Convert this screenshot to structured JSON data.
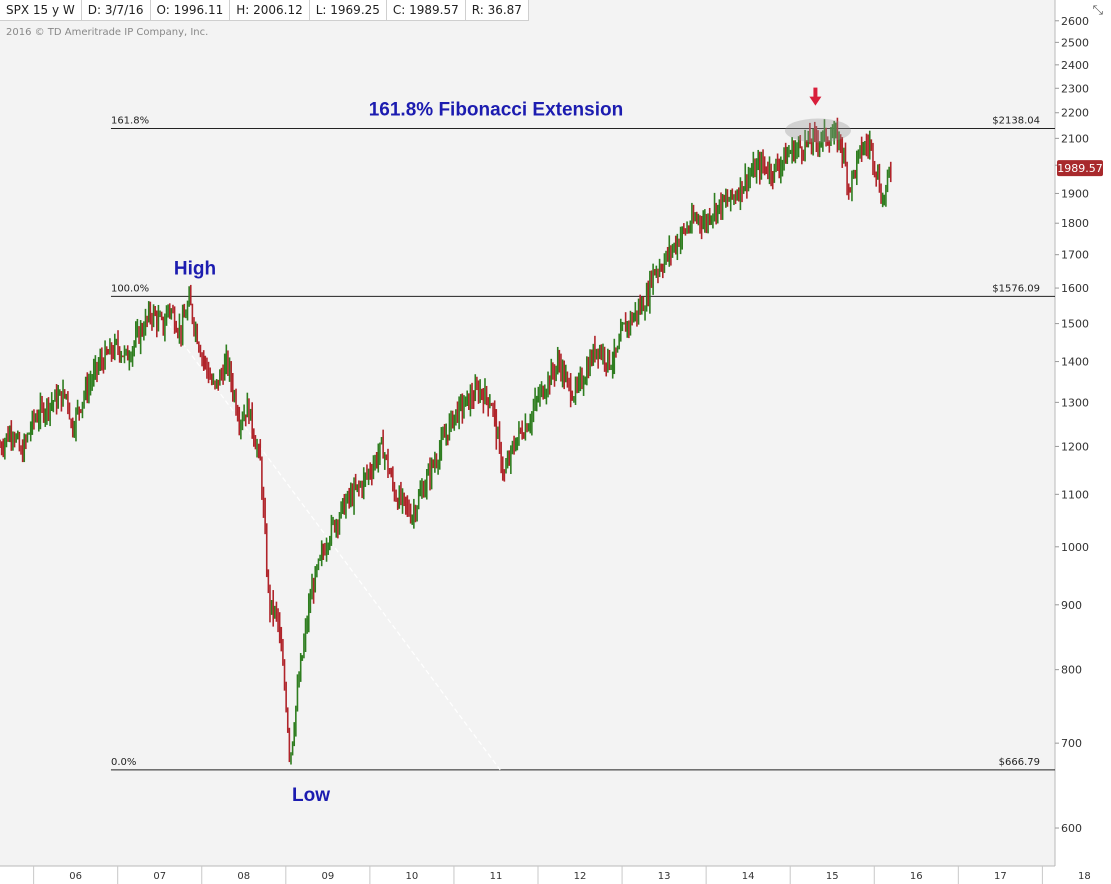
{
  "header": {
    "symbol": "SPX 15 y W",
    "date": "D: 3/7/16",
    "open": "O: 1996.11",
    "high": "H: 2006.12",
    "low": "L: 1969.25",
    "close": "C: 1989.57",
    "range": "R: 36.87"
  },
  "copyright": "2016 © TD Ameritrade IP Company, Inc.",
  "toolbar_icon": "drawing-tools-icon",
  "colors": {
    "up": "#2e7d1f",
    "down": "#b0242a",
    "price_tag": "#a8292c",
    "annotation_text": "#1c1cb0",
    "arrow": "#d81e3a",
    "plot_bg": "#f3f3f3"
  },
  "chart_data": {
    "type": "line",
    "title": "",
    "xlabel": "",
    "ylabel": "",
    "y_scale": "log",
    "ylim": [
      560,
      2700
    ],
    "xlim": [
      2005.6,
      2018.15
    ],
    "x_ticks": [
      "06",
      "07",
      "08",
      "09",
      "10",
      "11",
      "12",
      "13",
      "14",
      "15",
      "16",
      "17",
      "18"
    ],
    "y_ticks": [
      600,
      700,
      800,
      900,
      1000,
      1100,
      1200,
      1300,
      1400,
      1500,
      1600,
      1700,
      1800,
      1900,
      2000,
      2100,
      2200,
      2300,
      2400,
      2500,
      2600
    ],
    "grid": false,
    "series": [
      {
        "name": "SPX",
        "x": [
          2005.6,
          2005.75,
          2005.85,
          2006.0,
          2006.2,
          2006.4,
          2006.45,
          2006.6,
          2006.8,
          2007.0,
          2007.1,
          2007.2,
          2007.4,
          2007.55,
          2007.6,
          2007.75,
          2007.85,
          2008.0,
          2008.15,
          2008.3,
          2008.45,
          2008.55,
          2008.7,
          2008.8,
          2008.9,
          2009.0,
          2009.05,
          2009.15,
          2009.3,
          2009.5,
          2009.7,
          2009.9,
          2010.0,
          2010.15,
          2010.3,
          2010.5,
          2010.6,
          2010.8,
          2011.0,
          2011.3,
          2011.45,
          2011.55,
          2011.6,
          2011.75,
          2011.9,
          2012.0,
          2012.25,
          2012.35,
          2012.45,
          2012.7,
          2012.85,
          2012.95,
          2013.0,
          2013.3,
          2013.35,
          2013.5,
          2013.7,
          2013.9,
          2014.0,
          2014.05,
          2014.3,
          2014.5,
          2014.65,
          2014.8,
          2015.0,
          2015.2,
          2015.35,
          2015.5,
          2015.6,
          2015.7,
          2015.85,
          2015.95,
          2016.05,
          2016.1,
          2016.2
        ],
        "values": [
          1200,
          1240,
          1180,
          1260,
          1300,
          1320,
          1240,
          1320,
          1400,
          1440,
          1410,
          1450,
          1530,
          1490,
          1550,
          1480,
          1560,
          1420,
          1330,
          1400,
          1260,
          1290,
          1160,
          900,
          880,
          760,
          680,
          780,
          920,
          1020,
          1080,
          1120,
          1150,
          1200,
          1100,
          1060,
          1100,
          1180,
          1270,
          1330,
          1300,
          1180,
          1140,
          1220,
          1260,
          1310,
          1400,
          1340,
          1320,
          1440,
          1400,
          1420,
          1480,
          1570,
          1640,
          1680,
          1760,
          1820,
          1800,
          1840,
          1880,
          1960,
          2000,
          1980,
          2050,
          2080,
          2100,
          2110,
          2090,
          1920,
          2060,
          2080,
          1950,
          1870,
          1989.57
        ]
      }
    ],
    "fibonacci_levels": [
      {
        "label": "161.8%",
        "price": 2138.04,
        "price_label": "$2138.04"
      },
      {
        "label": "100.0%",
        "price": 1576.09,
        "price_label": "$1576.09"
      },
      {
        "label": "0.0%",
        "price": 666.79,
        "price_label": "$666.79"
      }
    ],
    "annotations": [
      {
        "text": "161.8% Fibonacci Extension",
        "x": 2011.5,
        "y": 2190
      },
      {
        "text": "High",
        "x": 2007.92,
        "y": 1640
      },
      {
        "text": "Low",
        "x": 2009.3,
        "y": 630
      }
    ],
    "last_price_label": "1989.57",
    "last_price": 1989.57
  }
}
